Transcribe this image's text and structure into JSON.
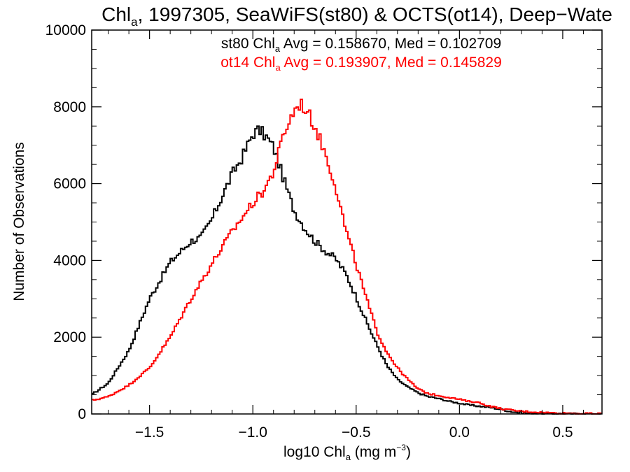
{
  "chart_data": {
    "type": "line",
    "title": {
      "main": "Chl",
      "sub": "a",
      "rest": ", 1997305, SeaWiFS(st80) & OCTS(ot14), Deep−Wate"
    },
    "annotations": [
      {
        "pre": "st80 Chl",
        "sub": "a",
        "post": " Avg = 0.158670, Med = 0.102709",
        "color": "#000000"
      },
      {
        "pre": "ot14 Chl",
        "sub": "a",
        "post": " Avg = 0.193907, Med = 0.145829",
        "color": "#ff0000"
      }
    ],
    "xlabel": {
      "pre": "log10 Chl",
      "sub": "a",
      "mid": " (mg m",
      "sup": "−3",
      "post": ")"
    },
    "ylabel": "Number of Observations",
    "xlim": [
      -1.78,
      0.69
    ],
    "ylim": [
      0,
      10000
    ],
    "xticks": [
      -1.5,
      -1.0,
      -0.5,
      0.0,
      0.5
    ],
    "xtick_labels": [
      "−1.5",
      "−1.0",
      "−0.5",
      "0.0",
      "0.5"
    ],
    "yticks": [
      0,
      2000,
      4000,
      6000,
      8000,
      10000
    ],
    "ytick_labels": [
      "0",
      "2000",
      "4000",
      "6000",
      "8000",
      "10000"
    ],
    "grid": false,
    "series": [
      {
        "name": "st80",
        "color": "#000000",
        "step": "histogram",
        "points": [
          [
            -1.78,
            500
          ],
          [
            -1.7,
            800
          ],
          [
            -1.6,
            1650
          ],
          [
            -1.5,
            3000
          ],
          [
            -1.4,
            3950
          ],
          [
            -1.3,
            4500
          ],
          [
            -1.25,
            4600
          ],
          [
            -1.2,
            5050
          ],
          [
            -1.1,
            6250
          ],
          [
            -1.05,
            6700
          ],
          [
            -1.0,
            7300
          ],
          [
            -0.97,
            7400
          ],
          [
            -0.94,
            7250
          ],
          [
            -0.9,
            6950
          ],
          [
            -0.85,
            6100
          ],
          [
            -0.8,
            5300
          ],
          [
            -0.75,
            4850
          ],
          [
            -0.7,
            4500
          ],
          [
            -0.65,
            4250
          ],
          [
            -0.6,
            4050
          ],
          [
            -0.55,
            3650
          ],
          [
            -0.5,
            3050
          ],
          [
            -0.45,
            2400
          ],
          [
            -0.4,
            1800
          ],
          [
            -0.35,
            1250
          ],
          [
            -0.3,
            900
          ],
          [
            -0.25,
            700
          ],
          [
            -0.2,
            550
          ],
          [
            -0.15,
            450
          ],
          [
            -0.1,
            400
          ],
          [
            -0.05,
            330
          ],
          [
            0.0,
            280
          ],
          [
            0.05,
            230
          ],
          [
            0.1,
            200
          ],
          [
            0.15,
            170
          ],
          [
            0.2,
            120
          ],
          [
            0.25,
            60
          ],
          [
            0.3,
            30
          ],
          [
            0.4,
            15
          ],
          [
            0.5,
            8
          ],
          [
            0.6,
            5
          ],
          [
            0.69,
            3
          ]
        ]
      },
      {
        "name": "ot14",
        "color": "#ff0000",
        "step": "histogram",
        "points": [
          [
            -1.78,
            350
          ],
          [
            -1.7,
            450
          ],
          [
            -1.6,
            750
          ],
          [
            -1.5,
            1200
          ],
          [
            -1.4,
            2000
          ],
          [
            -1.3,
            3000
          ],
          [
            -1.2,
            3900
          ],
          [
            -1.1,
            4750
          ],
          [
            -1.0,
            5500
          ],
          [
            -0.95,
            5800
          ],
          [
            -0.9,
            6300
          ],
          [
            -0.85,
            7300
          ],
          [
            -0.8,
            7900
          ],
          [
            -0.77,
            8100
          ],
          [
            -0.74,
            7900
          ],
          [
            -0.7,
            7500
          ],
          [
            -0.65,
            6800
          ],
          [
            -0.6,
            5950
          ],
          [
            -0.55,
            4800
          ],
          [
            -0.5,
            3900
          ],
          [
            -0.45,
            3000
          ],
          [
            -0.4,
            2150
          ],
          [
            -0.35,
            1600
          ],
          [
            -0.3,
            1200
          ],
          [
            -0.25,
            900
          ],
          [
            -0.2,
            650
          ],
          [
            -0.15,
            530
          ],
          [
            -0.1,
            480
          ],
          [
            -0.05,
            430
          ],
          [
            0.0,
            380
          ],
          [
            0.05,
            320
          ],
          [
            0.08,
            320
          ],
          [
            0.1,
            280
          ],
          [
            0.15,
            200
          ],
          [
            0.2,
            140
          ],
          [
            0.25,
            100
          ],
          [
            0.3,
            70
          ],
          [
            0.4,
            40
          ],
          [
            0.5,
            20
          ],
          [
            0.6,
            10
          ],
          [
            0.69,
            6
          ]
        ]
      }
    ]
  }
}
